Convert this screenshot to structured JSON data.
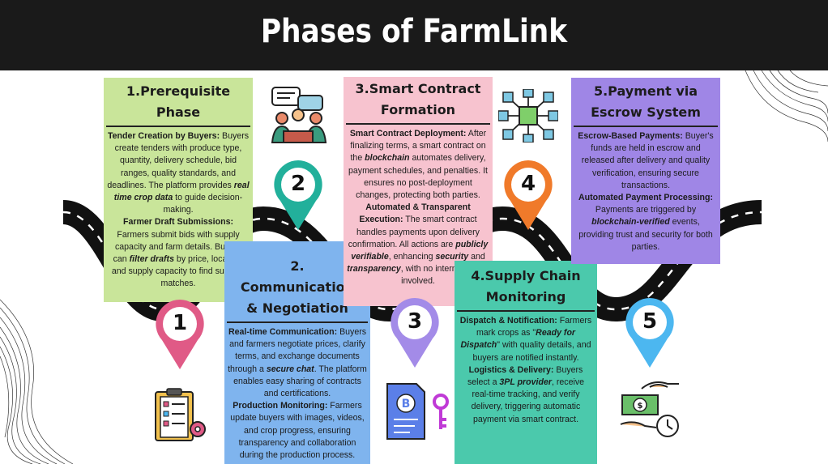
{
  "title": "Phases of FarmLink",
  "colors": {
    "phase1": "#c9e59a",
    "phase2": "#7fb4ee",
    "phase3": "#f7c3cf",
    "phase4": "#4bc9ac",
    "phase5": "#9f86e6",
    "pin1": "#e05a86",
    "pin2": "#22b09b",
    "pin3": "#a38be8",
    "pin4": "#f07a2a",
    "pin5": "#4cb7f0"
  },
  "phases": [
    {
      "number": "1",
      "title_line1": "1.Prerequisite",
      "title_line2": "Phase",
      "icon": "clipboard-checklist-icon",
      "content": {
        "h1": "Tender Creation by Buyers:",
        "t1": " Buyers create tenders with produce type, quantity, delivery schedule, bid ranges, quality standards, and deadlines. The platform provides ",
        "e1": "real time crop data",
        "t1b": " to guide decision-making.",
        "h2": "Farmer Draft Submissions:",
        "t2": " Farmers submit bids with supply capacity and farm details. Buyers can ",
        "e2": "filter drafts",
        "t2b": " by price, location, and supply capacity to find suitable matches."
      }
    },
    {
      "number": "2",
      "title_line1": "2.",
      "title_line2": "Communication",
      "title_line3": "& Negotiation",
      "icon": "people-chat-icon",
      "content": {
        "h1": "Real-time Communication:",
        "t1": " Buyers and farmers negotiate prices, clarify terms, and exchange documents through a ",
        "e1": "secure chat",
        "t1b": ". The platform enables easy sharing of contracts and certifications.",
        "h2": "Production Monitoring:",
        "t2": " Farmers update buyers with images, videos, and crop progress, ensuring transparency and collaboration during the production process."
      }
    },
    {
      "number": "3",
      "title_line1": "3.Smart Contract",
      "title_line2": "Formation",
      "icon": "bitcoin-document-key-icon",
      "content": {
        "h1": "Smart Contract Deployment:",
        "t1": " After finalizing terms, a smart contract on the ",
        "e1": "blockchain",
        "t1b": " automates delivery, payment schedules, and penalties. It ensures no post-deployment changes, protecting both parties.",
        "h2": "Automated & Transparent Execution:",
        "t2": " The smart contract handles payments upon delivery confirmation. All actions are ",
        "e2": "publicly verifiable",
        "t2b": ", enhancing ",
        "e3": "security",
        "t2c": " and ",
        "e4": "transparency",
        "t2d": ", with no intermediaries involved."
      }
    },
    {
      "number": "4",
      "title_line1": "4.Supply Chain",
      "title_line2": "Monitoring",
      "icon": "blockchain-cubes-icon",
      "content": {
        "h1": "Dispatch & Notification:",
        "t1": " Farmers mark crops as \"",
        "e1": "Ready for Dispatch",
        "t1b": "\" with quality details, and buyers are notified instantly.",
        "h2": "Logistics & Delivery:",
        "t2": " Buyers select a ",
        "e2": "3PL provider",
        "t2b": ", receive real-time tracking, and verify delivery, triggering automatic payment via smart contract."
      }
    },
    {
      "number": "5",
      "title_line1": "5.Payment via",
      "title_line2": "Escrow System",
      "icon": "money-exchange-clock-icon",
      "content": {
        "h1": "Escrow-Based Payments:",
        "t1": " Buyer's funds are held in escrow and released after delivery and quality verification, ensuring secure transactions.",
        "h2": "Automated Payment Processing:",
        "t2": " Payments are triggered by ",
        "e2": "blockchain-verified",
        "t2b": " events, providing trust and security for both parties."
      }
    }
  ]
}
